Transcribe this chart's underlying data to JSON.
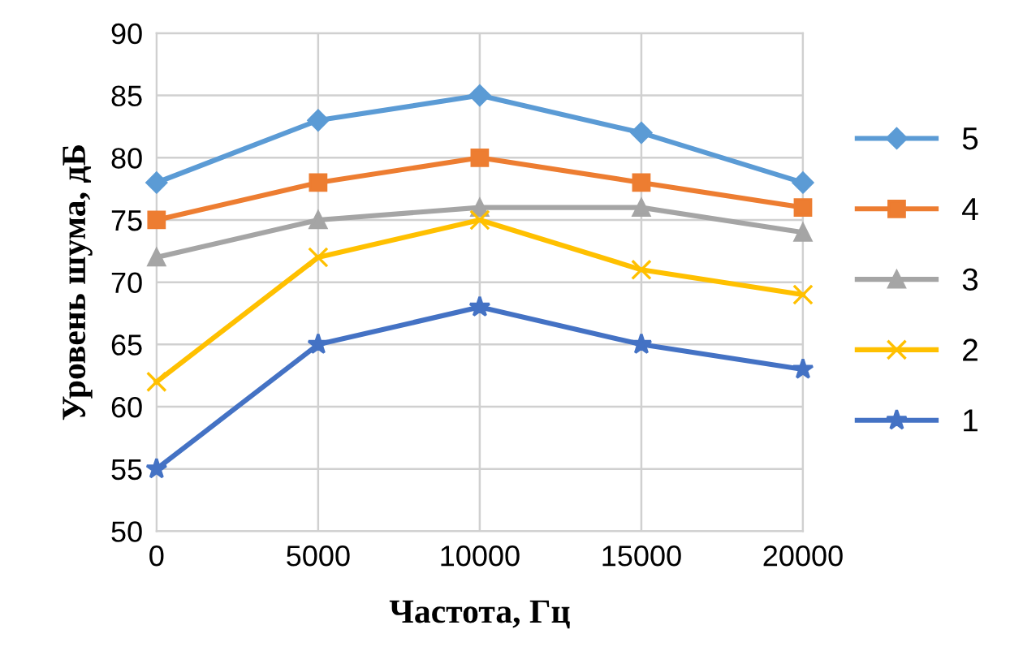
{
  "chart_data": {
    "type": "line",
    "xlabel": "Частота, Гц",
    "ylabel": "Уровень шума, дБ",
    "x": [
      0,
      5000,
      10000,
      15000,
      20000
    ],
    "xlim": [
      0,
      20000
    ],
    "xticks": [
      0,
      5000,
      10000,
      15000,
      20000
    ],
    "ylim": [
      50,
      90
    ],
    "yticks": [
      50,
      55,
      60,
      65,
      70,
      75,
      80,
      85,
      90
    ],
    "grid": true,
    "legend": "right",
    "series": [
      {
        "name": "5",
        "color": "#5b9bd5",
        "marker": "diamond",
        "values": [
          78,
          83,
          85,
          82,
          78
        ]
      },
      {
        "name": "4",
        "color": "#ed7d31",
        "marker": "square",
        "values": [
          75,
          78,
          80,
          78,
          76
        ]
      },
      {
        "name": "3",
        "color": "#a5a5a5",
        "marker": "triangle",
        "values": [
          72,
          75,
          76,
          76,
          74
        ]
      },
      {
        "name": "2",
        "color": "#ffc000",
        "marker": "cross",
        "values": [
          62,
          72,
          75,
          71,
          69
        ]
      },
      {
        "name": "1",
        "color": "#4472c4",
        "marker": "star",
        "values": [
          55,
          65,
          68,
          65,
          63
        ]
      }
    ]
  }
}
